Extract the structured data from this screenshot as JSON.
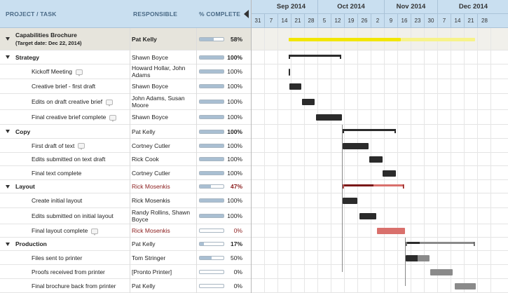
{
  "header": {
    "task": "PROJECT / TASK",
    "responsible": "RESPONSIBLE",
    "percent": "% COMPLETE"
  },
  "timeline": {
    "months": [
      "Sep 2014",
      "Oct 2014",
      "Nov 2014",
      "Dec 2014"
    ],
    "days": [
      "31",
      "7",
      "14",
      "21",
      "28",
      "5",
      "12",
      "19",
      "26",
      "2",
      "9",
      "16",
      "23",
      "30",
      "7",
      "14",
      "21",
      "28"
    ]
  },
  "rows": [
    {
      "task": "Capabilities Brochure",
      "subtitle": "(Target date: Dec 22, 2014)",
      "responsible": "Pat Kelly",
      "percent": "58%",
      "pct": 0.58,
      "level": "top"
    },
    {
      "task": "Strategy",
      "responsible": "Shawn Boyce",
      "percent": "100%",
      "pct": 1.0,
      "level": "group"
    },
    {
      "task": "Kickoff Meeting",
      "responsible": "Howard Hollar, John Adams",
      "percent": "100%",
      "pct": 1.0,
      "level": "task",
      "comment": true
    },
    {
      "task": "Creative brief - first draft",
      "responsible": "Shawn Boyce",
      "percent": "100%",
      "pct": 1.0,
      "level": "task"
    },
    {
      "task": "Edits on draft creative brief",
      "responsible": "John Adams, Susan Moore",
      "percent": "100%",
      "pct": 1.0,
      "level": "task",
      "comment": true
    },
    {
      "task": "Final creative brief complete",
      "responsible": "Shawn Boyce",
      "percent": "100%",
      "pct": 1.0,
      "level": "task",
      "comment": true
    },
    {
      "task": "Copy",
      "responsible": "Pat Kelly",
      "percent": "100%",
      "pct": 1.0,
      "level": "group"
    },
    {
      "task": "First draft of text",
      "responsible": "Cortney Cutler",
      "percent": "100%",
      "pct": 1.0,
      "level": "task",
      "comment": true
    },
    {
      "task": "Edits submitted on text draft",
      "responsible": "Rick Cook",
      "percent": "100%",
      "pct": 1.0,
      "level": "task"
    },
    {
      "task": "Final text complete",
      "responsible": "Cortney Cutler",
      "percent": "100%",
      "pct": 1.0,
      "level": "task"
    },
    {
      "task": "Layout",
      "responsible": "Rick Mosenkis",
      "percent": "47%",
      "pct": 0.47,
      "level": "group",
      "alert": true
    },
    {
      "task": "Create initial layout",
      "responsible": "Rick Mosenkis",
      "percent": "100%",
      "pct": 1.0,
      "level": "task"
    },
    {
      "task": "Edits submitted on initial layout",
      "responsible": "Randy Rollins, Shawn Boyce",
      "percent": "100%",
      "pct": 1.0,
      "level": "task"
    },
    {
      "task": "Final layout complete",
      "responsible": "Rick Mosenkis",
      "percent": "0%",
      "pct": 0.0,
      "level": "task",
      "comment": true,
      "alert": true
    },
    {
      "task": "Production",
      "responsible": "Pat Kelly",
      "percent": "17%",
      "pct": 0.17,
      "level": "group"
    },
    {
      "task": "Files sent to printer",
      "responsible": "Tom Stringer",
      "percent": "50%",
      "pct": 0.5,
      "level": "task"
    },
    {
      "task": "Proofs received from printer",
      "responsible": "[Pronto Printer]",
      "percent": "0%",
      "pct": 0.0,
      "level": "task"
    },
    {
      "task": "Final brochure back from printer",
      "responsible": "Pat Kelly",
      "percent": "0%",
      "pct": 0.0,
      "level": "task"
    }
  ],
  "colors": {
    "header_bg": "#c9dff0",
    "top_bar": "#f2e600",
    "top_bar_light": "#f7f38a",
    "done_bar": "#2b2b2b",
    "alert_dark": "#7a1818",
    "alert_light": "#d9706c",
    "pending_bar": "#8a8a8a"
  }
}
